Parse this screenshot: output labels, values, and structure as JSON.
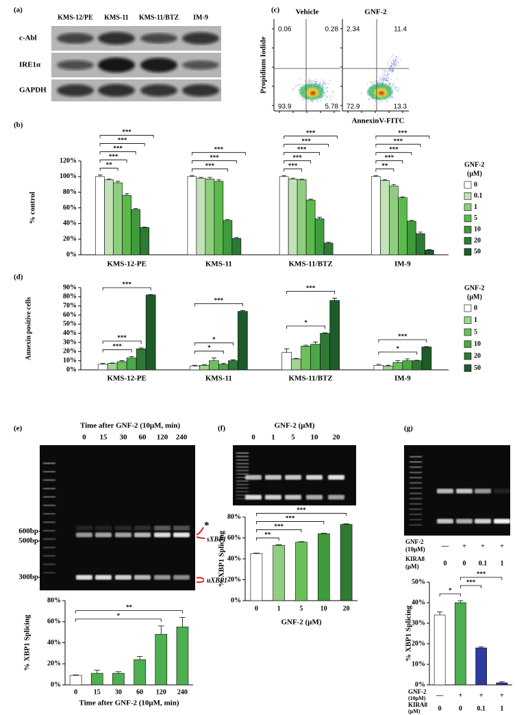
{
  "panel_labels": [
    "(a)",
    "(b)",
    "(c)",
    "(d)",
    "(e)",
    "(f)",
    "(g)"
  ],
  "blot": {
    "lanes": [
      "KMS-12/PE",
      "KMS-11",
      "KMS-11/BTZ",
      "IM-9"
    ],
    "rows": [
      "c-Abl",
      "IRE1α",
      "GAPDH"
    ]
  },
  "flow": {
    "ylabel": "Propidium Iodide",
    "xlabel": "AnnexinV-FITC",
    "plots": [
      {
        "title": "Vehicle",
        "quadrants": [
          0.06,
          0.28,
          93.9,
          5.78
        ]
      },
      {
        "title": "GNF-2",
        "quadrants": [
          2.34,
          11.4,
          72.9,
          13.3
        ]
      }
    ]
  },
  "gels": [
    {
      "title": "Time after GNF-2 (10μM, min)",
      "lanes": [
        "0",
        "15",
        "30",
        "60",
        "120",
        "240"
      ],
      "ladder": [
        "600bp",
        "500bp",
        "300bp"
      ],
      "band_labels": [
        "*",
        "sXBP1",
        "uXBP1"
      ]
    },
    {
      "title": "GNF-2 (μM)",
      "lanes": [
        "0",
        "1",
        "5",
        "10",
        "20"
      ]
    },
    {
      "rows": [
        {
          "label": [
            "GNF-2",
            "(10μM)"
          ],
          "values": [
            "—",
            "+",
            "+",
            "+"
          ]
        },
        {
          "label": [
            "KIRA8",
            "(μM)"
          ],
          "values": [
            "0",
            "0",
            "0.1",
            "1"
          ]
        }
      ]
    }
  ],
  "chart_data": [
    {
      "type": "grouped_bar",
      "ylabel": "% control",
      "categories": [
        "KMS-12-PE",
        "KMS-11",
        "KMS-11/BTZ",
        "IM-9"
      ],
      "legend_title": [
        "GNF-2",
        "(μM)"
      ],
      "series": [
        {
          "name": "0",
          "color": "#ffffff",
          "values": [
            100,
            100,
            100,
            100
          ],
          "errors": [
            2,
            1,
            1,
            1
          ]
        },
        {
          "name": "0.1",
          "color": "#c3e2b7",
          "values": [
            96,
            98,
            97,
            95
          ],
          "errors": [
            1,
            1,
            1,
            1
          ]
        },
        {
          "name": "1",
          "color": "#8fce7f",
          "values": [
            92,
            97,
            96,
            88
          ],
          "errors": [
            2,
            2,
            0.5,
            2
          ]
        },
        {
          "name": "5",
          "color": "#5cb94c",
          "values": [
            76,
            94,
            70,
            73
          ],
          "errors": [
            2,
            2,
            1,
            1
          ]
        },
        {
          "name": "10",
          "color": "#3f9b3c",
          "values": [
            58,
            44,
            46,
            43
          ],
          "errors": [
            1,
            1,
            2,
            1
          ]
        },
        {
          "name": "20",
          "color": "#2e7a34",
          "values": [
            35,
            21,
            15,
            27
          ],
          "errors": [
            0.5,
            1,
            1,
            2
          ]
        },
        {
          "name": "50",
          "color": "#1f5a2a",
          "values": [
            0,
            0,
            0,
            6
          ],
          "errors": [
            0,
            0,
            0,
            0.5
          ]
        }
      ],
      "ylim": [
        0,
        120
      ],
      "yticks": [
        {
          "value": 0,
          "label": "0%"
        },
        {
          "value": 20,
          "label": "20%"
        },
        {
          "value": 40,
          "label": "40%"
        },
        {
          "value": 60,
          "label": "60%"
        },
        {
          "value": 80,
          "label": "80%"
        },
        {
          "value": 100,
          "label": "100%"
        },
        {
          "value": 120,
          "label": "120%"
        }
      ],
      "significance": [
        [
          "**",
          "***",
          "***",
          "***",
          "***"
        ],
        [
          "***",
          "***",
          "***"
        ],
        [
          "***",
          "***",
          "***",
          "***",
          "***"
        ],
        [
          "**",
          "***",
          "***",
          "***",
          "***"
        ]
      ]
    },
    {
      "type": "grouped_bar",
      "ylabel": "Annexin positive cells",
      "categories": [
        "KMS-12-PE",
        "KMS-11",
        "KMS-11/BTZ",
        "IM-9"
      ],
      "legend_title": [
        "GNF-2",
        "(μM)"
      ],
      "series": [
        {
          "name": "0",
          "color": "#ffffff",
          "values": [
            6,
            4,
            19,
            5
          ],
          "errors": [
            1,
            1,
            4,
            1
          ]
        },
        {
          "name": "1",
          "color": "#9fd48e",
          "values": [
            7,
            5,
            12,
            4
          ],
          "errors": [
            0.5,
            0.5,
            0.5,
            1
          ]
        },
        {
          "name": "5",
          "color": "#6cc05a",
          "values": [
            9,
            10,
            26,
            8
          ],
          "errors": [
            1,
            3,
            1,
            2
          ]
        },
        {
          "name": "10",
          "color": "#4aa845",
          "values": [
            13,
            6,
            28,
            10
          ],
          "errors": [
            1.5,
            1,
            2.5,
            2
          ]
        },
        {
          "name": "20",
          "color": "#2e7a34",
          "values": [
            23,
            10,
            40,
            10
          ],
          "errors": [
            1,
            1,
            0.5,
            0.5
          ]
        },
        {
          "name": "50",
          "color": "#1f5a2a",
          "values": [
            82,
            64,
            76,
            25
          ],
          "errors": [
            0.5,
            1,
            2.5,
            0.5
          ]
        }
      ],
      "ylim": [
        0,
        90
      ],
      "yticks": [
        {
          "value": 0,
          "label": "0%"
        },
        {
          "value": 10,
          "label": "10%"
        },
        {
          "value": 20,
          "label": "20%"
        },
        {
          "value": 30,
          "label": "30%"
        },
        {
          "value": 40,
          "label": "40%"
        },
        {
          "value": 50,
          "label": "50%"
        },
        {
          "value": 60,
          "label": "60%"
        },
        {
          "value": 70,
          "label": "70%"
        },
        {
          "value": 80,
          "label": "80%"
        },
        {
          "value": 90,
          "label": "90%"
        }
      ],
      "significance": [
        [
          "***",
          "***",
          "***"
        ],
        [
          "*",
          "*",
          "***"
        ],
        [
          "*",
          "***"
        ],
        [
          "*",
          "***"
        ]
      ]
    },
    {
      "type": "bar",
      "ylabel": "% XBP1 Splicing",
      "xlabel": "Time after GNF-2 (10μM, min)",
      "categories": [
        "0",
        "15",
        "30",
        "60",
        "120",
        "240"
      ],
      "values": [
        9,
        11,
        11,
        24,
        48,
        55
      ],
      "errors": [
        0.5,
        3,
        1.5,
        3,
        8,
        9
      ],
      "colors": [
        "#ffffff",
        "#4caf50",
        "#4caf50",
        "#4caf50",
        "#4caf50",
        "#4caf50"
      ],
      "ylim": [
        0,
        80
      ],
      "yticks": [
        {
          "value": 0,
          "label": "0%"
        },
        {
          "value": 20,
          "label": "20%"
        },
        {
          "value": 40,
          "label": "40%"
        },
        {
          "value": 60,
          "label": "60%"
        },
        {
          "value": 80,
          "label": "80%"
        }
      ],
      "significance": [
        "*",
        "**"
      ]
    },
    {
      "type": "bar",
      "ylabel": "% XBP1 Splicing",
      "xlabel": "GNF-2 (μM)",
      "categories": [
        "0",
        "1",
        "5",
        "10",
        "20"
      ],
      "values": [
        45,
        53,
        56,
        64,
        73
      ],
      "errors": [
        0.5,
        0.5,
        0.5,
        0.5,
        0.5
      ],
      "colors": [
        "#ffffff",
        "#8fce7f",
        "#6cc05a",
        "#3f9b3c",
        "#2e7a34"
      ],
      "ylim": [
        0,
        80
      ],
      "yticks": [
        {
          "value": 0,
          "label": "0%"
        },
        {
          "value": 20,
          "label": "20%"
        },
        {
          "value": 40,
          "label": "40%"
        },
        {
          "value": 60,
          "label": "60%"
        },
        {
          "value": 80,
          "label": "80%"
        }
      ],
      "significance": [
        "**",
        "***",
        "***",
        "***"
      ]
    },
    {
      "type": "bar",
      "ylabel": "% XBP1 Splicing",
      "rows": [
        {
          "label": [
            "GNF-2",
            "(10μM)"
          ],
          "values": [
            "—",
            "+",
            "+",
            "+"
          ]
        },
        {
          "label": [
            "KIRA8",
            "(μM)"
          ],
          "values": [
            "0",
            "0",
            "0.1",
            "1"
          ]
        }
      ],
      "values": [
        34,
        40,
        18,
        1
      ],
      "errors": [
        1.5,
        1,
        0.5,
        0.5
      ],
      "colors": [
        "#ffffff",
        "#4caf50",
        "#2e3a9c",
        "#2e3a9c"
      ],
      "ylim": [
        0,
        50
      ],
      "yticks": [
        {
          "value": 0,
          "label": "0%"
        },
        {
          "value": 10,
          "label": "10%"
        },
        {
          "value": 20,
          "label": "20%"
        },
        {
          "value": 30,
          "label": "30%"
        },
        {
          "value": 40,
          "label": "40%"
        },
        {
          "value": 50,
          "label": "50%"
        }
      ],
      "significance": [
        "*",
        "***",
        "***"
      ]
    }
  ]
}
